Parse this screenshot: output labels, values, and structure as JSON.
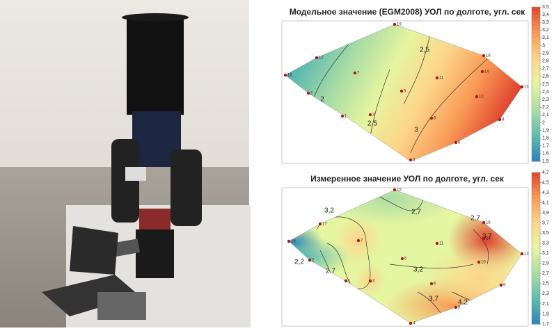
{
  "chart_data": [
    {
      "type": "contour",
      "title": "Модельное значение (EGM2008) УОЛ по долготе, угл. сек",
      "clim": [
        1.5,
        3.5
      ],
      "colormap": [
        "#2b83ba",
        "#5fbcb0",
        "#abdda4",
        "#e6f5a0",
        "#fdd58a",
        "#f99a55",
        "#e0432e"
      ],
      "colorbar_ticks": [
        {
          "value": 1.5,
          "label": "1,5"
        },
        {
          "value": 1.6,
          "label": "1,6"
        },
        {
          "value": 1.7,
          "label": "1,7"
        },
        {
          "value": 1.8,
          "label": "1,8"
        },
        {
          "value": 1.9,
          "label": "1,9"
        },
        {
          "value": 2,
          "label": "2"
        },
        {
          "value": 2.1,
          "label": "2,1"
        },
        {
          "value": 2.2,
          "label": "2,2"
        },
        {
          "value": 2.3,
          "label": "2,3"
        },
        {
          "value": 2.4,
          "label": "2,4"
        },
        {
          "value": 2.5,
          "label": "2,5"
        },
        {
          "value": 2.6,
          "label": "2,6"
        },
        {
          "value": 2.7,
          "label": "2,7"
        },
        {
          "value": 2.8,
          "label": "2,8"
        },
        {
          "value": 2.9,
          "label": "2,9"
        },
        {
          "value": 3,
          "label": "3"
        },
        {
          "value": 3.1,
          "label": "3,1"
        },
        {
          "value": 3.2,
          "label": "3,2"
        },
        {
          "value": 3.3,
          "label": "3,3"
        },
        {
          "value": 3.4,
          "label": "3,4"
        },
        {
          "value": 3.5,
          "label": "3,5"
        }
      ],
      "contours": [
        {
          "value": 2,
          "label": "2"
        },
        {
          "value": 2.5,
          "label": "2,5"
        },
        {
          "value": 2.5,
          "label": "2,5"
        },
        {
          "value": 3,
          "label": "3"
        }
      ],
      "stations": [
        "19",
        "12",
        "18",
        "7",
        "14",
        "11",
        "16",
        "13",
        "2",
        "5",
        "10",
        "3",
        "1",
        "6",
        "9",
        "8",
        "4"
      ]
    },
    {
      "type": "contour",
      "title": "Измеренное значение УОЛ по долготе, угл. сек",
      "clim": [
        1.7,
        4.7
      ],
      "colormap": [
        "#2b83ba",
        "#5fbcb0",
        "#abdda4",
        "#e6f5a0",
        "#fdd58a",
        "#f99a55",
        "#e0432e"
      ],
      "colorbar_ticks": [
        {
          "value": 1.7,
          "label": "1,7"
        },
        {
          "value": 1.9,
          "label": "1,9"
        },
        {
          "value": 2.1,
          "label": "2,1"
        },
        {
          "value": 2.3,
          "label": "2,3"
        },
        {
          "value": 2.5,
          "label": "2,5"
        },
        {
          "value": 2.7,
          "label": "2,7"
        },
        {
          "value": 2.9,
          "label": "2,9"
        },
        {
          "value": 3.1,
          "label": "3,1"
        },
        {
          "value": 3.3,
          "label": "3,3"
        },
        {
          "value": 3.5,
          "label": "3,5"
        },
        {
          "value": 3.7,
          "label": "3,7"
        },
        {
          "value": 3.9,
          "label": "3,9"
        },
        {
          "value": 4.1,
          "label": "4,1"
        },
        {
          "value": 4.3,
          "label": "4,3"
        },
        {
          "value": 4.5,
          "label": "4,5"
        },
        {
          "value": 4.7,
          "label": "4,7"
        }
      ],
      "contours": [
        {
          "value": 3.2,
          "label": "3,2"
        },
        {
          "value": 2.7,
          "label": "2,7"
        },
        {
          "value": 2.7,
          "label": "2,7"
        },
        {
          "value": 2.2,
          "label": "2,2"
        },
        {
          "value": 2.7,
          "label": "2,7"
        },
        {
          "value": 3.2,
          "label": "3,2"
        },
        {
          "value": 3.7,
          "label": "3,7"
        },
        {
          "value": 3.7,
          "label": "3,7"
        },
        {
          "value": 4.2,
          "label": "4,2"
        }
      ],
      "stations": [
        "15",
        "17",
        "18",
        "7",
        "14",
        "11",
        "16",
        "13",
        "2",
        "5",
        "10",
        "3",
        "1",
        "6",
        "9",
        "8",
        "4"
      ]
    }
  ]
}
